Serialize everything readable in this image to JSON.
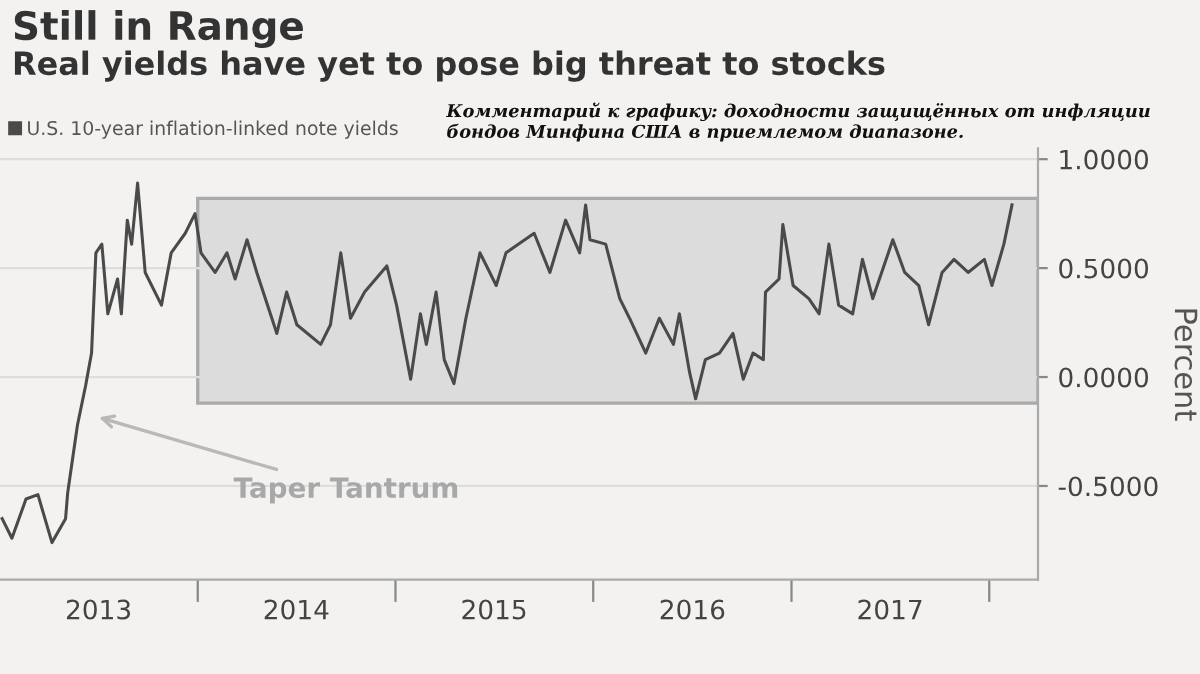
{
  "chart_data": {
    "type": "line",
    "title": "Still in Range",
    "subtitle": "Real yields have yet to pose big threat to stocks",
    "ylabel": "Percent",
    "x": [
      "2013-01-05",
      "2013-01-23",
      "2013-02-18",
      "2013-03-12",
      "2013-04-07",
      "2013-05-02",
      "2013-05-06",
      "2013-05-24",
      "2013-06-08",
      "2013-06-19",
      "2013-06-27",
      "2013-07-08",
      "2013-07-19",
      "2013-08-06",
      "2013-08-13",
      "2013-08-24",
      "2013-09-01",
      "2013-09-12",
      "2013-09-26",
      "2013-10-26",
      "2013-11-13",
      "2013-12-09",
      "2013-12-27",
      "2014-01-07",
      "2014-02-02",
      "2014-02-24",
      "2014-03-11",
      "2014-04-02",
      "2014-04-20",
      "2014-05-27",
      "2014-06-14",
      "2014-07-03",
      "2014-08-16",
      "2014-09-03",
      "2014-09-22",
      "2014-10-10",
      "2014-11-05",
      "2014-12-16",
      "2015-01-03",
      "2015-01-29",
      "2015-02-16",
      "2015-02-27",
      "2015-03-17",
      "2015-04-01",
      "2015-04-19",
      "2015-05-11",
      "2015-06-06",
      "2015-07-06",
      "2015-07-24",
      "2015-09-14",
      "2015-10-13",
      "2015-11-11",
      "2015-12-07",
      "2015-12-18",
      "2015-12-26",
      "2016-01-24",
      "2016-02-19",
      "2016-03-08",
      "2016-04-07",
      "2016-05-02",
      "2016-05-28",
      "2016-06-08",
      "2016-06-27",
      "2016-07-08",
      "2016-07-26",
      "2016-08-21",
      "2016-09-15",
      "2016-10-04",
      "2016-10-22",
      "2016-11-10",
      "2016-11-14",
      "2016-12-09",
      "2016-12-16",
      "2017-01-04",
      "2017-02-02",
      "2017-02-21",
      "2017-03-11",
      "2017-03-29",
      "2017-04-24",
      "2017-05-12",
      "2017-05-31",
      "2017-07-07",
      "2017-07-29",
      "2017-08-24",
      "2017-09-11",
      "2017-10-06",
      "2017-10-28",
      "2017-11-23",
      "2017-12-23",
      "2018-01-06",
      "2018-01-28",
      "2018-02-12"
    ],
    "series": [
      {
        "name": "U.S. 10-year inflation-linked note yields",
        "color": "#4a4a4a",
        "values": [
          -0.65,
          -0.74,
          -0.56,
          -0.54,
          -0.76,
          -0.65,
          -0.53,
          -0.22,
          -0.04,
          0.11,
          0.57,
          0.61,
          0.29,
          0.45,
          0.29,
          0.72,
          0.61,
          0.89,
          0.48,
          0.33,
          0.57,
          0.66,
          0.75,
          0.57,
          0.48,
          0.57,
          0.45,
          0.63,
          0.48,
          0.2,
          0.39,
          0.24,
          0.15,
          0.24,
          0.57,
          0.27,
          0.39,
          0.51,
          0.33,
          -0.01,
          0.29,
          0.15,
          0.39,
          0.08,
          -0.03,
          0.27,
          0.57,
          0.42,
          0.57,
          0.66,
          0.48,
          0.72,
          0.57,
          0.79,
          0.63,
          0.61,
          0.36,
          0.27,
          0.11,
          0.27,
          0.15,
          0.29,
          0.02,
          -0.1,
          0.08,
          0.11,
          0.2,
          -0.01,
          0.11,
          0.08,
          0.39,
          0.45,
          0.7,
          0.42,
          0.36,
          0.29,
          0.61,
          0.33,
          0.29,
          0.54,
          0.36,
          0.63,
          0.48,
          0.42,
          0.24,
          0.48,
          0.54,
          0.48,
          0.54,
          0.42,
          0.61,
          0.79
        ]
      }
    ],
    "xlim": [
      "2013-01-01",
      "2018-04-01"
    ],
    "xticks": [
      {
        "value": "2013-07-02",
        "label": "2013"
      },
      {
        "value": "2014-07-02",
        "label": "2014"
      },
      {
        "value": "2015-07-02",
        "label": "2015"
      },
      {
        "value": "2016-07-02",
        "label": "2016"
      },
      {
        "value": "2017-07-02",
        "label": "2017"
      },
      {
        "value": "2014-01-01",
        "label": null
      },
      {
        "value": "2015-01-01",
        "label": null
      },
      {
        "value": "2016-01-01",
        "label": null
      },
      {
        "value": "2017-01-01",
        "label": null
      },
      {
        "value": "2018-01-01",
        "label": null
      }
    ],
    "ylim": [
      -0.93,
      1.05
    ],
    "yticks": [
      {
        "value": -0.5,
        "label": "-0.5000"
      },
      {
        "value": 0,
        "label": "0.0000"
      },
      {
        "value": 0.5,
        "label": "0.5000"
      },
      {
        "value": 1,
        "label": "1.0000"
      }
    ],
    "bands": [
      {
        "axis": "y",
        "from": -0.12,
        "to": 0.82,
        "color": "#dcdcdc"
      }
    ],
    "annotations": [
      "Taper Tantrum",
      "Комментарий к графику: доходности защищённых от инфляции бондов Минфина США в приемлемом диапазоне."
    ],
    "grid": "y",
    "legend": "top left",
    "line_style": "solid",
    "marker": "none"
  }
}
